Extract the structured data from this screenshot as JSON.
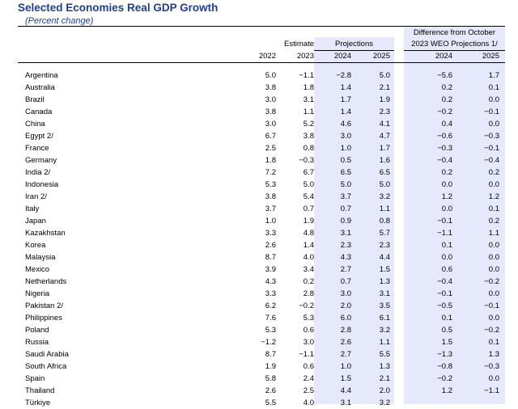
{
  "title": "Selected Economies Real GDP Growth",
  "subtitle": "(Percent change)",
  "headers": {
    "estimate": "Estimate",
    "projections": "Projections",
    "difference_line1": "Difference from October",
    "difference_line2": "2023 WEO Projections 1/",
    "years": [
      "2022",
      "2023",
      "2024",
      "2025",
      "2024",
      "2025"
    ]
  },
  "rows": [
    {
      "name": "Argentina",
      "values": [
        "5.0",
        "−1.1",
        "−2.8",
        "5.0",
        "−5.6",
        "1.7"
      ]
    },
    {
      "name": "Australia",
      "values": [
        "3.8",
        "1.8",
        "1.4",
        "2.1",
        "0.2",
        "0.1"
      ]
    },
    {
      "name": "Brazil",
      "values": [
        "3.0",
        "3.1",
        "1.7",
        "1.9",
        "0.2",
        "0.0"
      ]
    },
    {
      "name": "Canada",
      "values": [
        "3.8",
        "1.1",
        "1.4",
        "2.3",
        "−0.2",
        "−0.1"
      ]
    },
    {
      "name": "China",
      "values": [
        "3.0",
        "5.2",
        "4.6",
        "4.1",
        "0.4",
        "0.0"
      ]
    },
    {
      "name": "Egypt 2/",
      "values": [
        "6.7",
        "3.8",
        "3.0",
        "4.7",
        "−0.6",
        "−0.3"
      ]
    },
    {
      "name": "France",
      "values": [
        "2.5",
        "0.8",
        "1.0",
        "1.7",
        "−0.3",
        "−0.1"
      ]
    },
    {
      "name": "Germany",
      "values": [
        "1.8",
        "−0.3",
        "0.5",
        "1.6",
        "−0.4",
        "−0.4"
      ]
    },
    {
      "name": "India 2/",
      "values": [
        "7.2",
        "6.7",
        "6.5",
        "6.5",
        "0.2",
        "0.2"
      ]
    },
    {
      "name": "Indonesia",
      "values": [
        "5.3",
        "5.0",
        "5.0",
        "5.0",
        "0.0",
        "0.0"
      ]
    },
    {
      "name": "Iran 2/",
      "values": [
        "3.8",
        "5.4",
        "3.7",
        "3.2",
        "1.2",
        "1.2"
      ]
    },
    {
      "name": "Italy",
      "values": [
        "3.7",
        "0.7",
        "0.7",
        "1.1",
        "0.0",
        "0.1"
      ]
    },
    {
      "name": "Japan",
      "values": [
        "1.0",
        "1.9",
        "0.9",
        "0.8",
        "−0.1",
        "0.2"
      ]
    },
    {
      "name": "Kazakhstan",
      "values": [
        "3.3",
        "4.8",
        "3.1",
        "5.7",
        "−1.1",
        "1.1"
      ]
    },
    {
      "name": "Korea",
      "values": [
        "2.6",
        "1.4",
        "2.3",
        "2.3",
        "0.1",
        "0.0"
      ]
    },
    {
      "name": "Malaysia",
      "values": [
        "8.7",
        "4.0",
        "4.3",
        "4.4",
        "0.0",
        "0.0"
      ]
    },
    {
      "name": "Mexico",
      "values": [
        "3.9",
        "3.4",
        "2.7",
        "1.5",
        "0.6",
        "0.0"
      ]
    },
    {
      "name": "Netherlands",
      "values": [
        "4.3",
        "0.2",
        "0.7",
        "1.3",
        "−0.4",
        "−0.2"
      ]
    },
    {
      "name": "Nigeria",
      "values": [
        "3.3",
        "2.8",
        "3.0",
        "3.1",
        "−0.1",
        "0.0"
      ]
    },
    {
      "name": "Pakistan 2/",
      "values": [
        "6.2",
        "−0.2",
        "2.0",
        "3.5",
        "−0.5",
        "−0.1"
      ]
    },
    {
      "name": "Philippines",
      "values": [
        "7.6",
        "5.3",
        "6.0",
        "6.1",
        "0.1",
        "0.0"
      ]
    },
    {
      "name": "Poland",
      "values": [
        "5.3",
        "0.6",
        "2.8",
        "3.2",
        "0.5",
        "−0.2"
      ]
    },
    {
      "name": "Russia",
      "values": [
        "−1.2",
        "3.0",
        "2.6",
        "1.1",
        "1.5",
        "0.1"
      ]
    },
    {
      "name": "Saudi Arabia",
      "values": [
        "8.7",
        "−1.1",
        "2.7",
        "5.5",
        "−1.3",
        "1.3"
      ]
    },
    {
      "name": "South Africa",
      "values": [
        "1.9",
        "0.6",
        "1.0",
        "1.3",
        "−0.8",
        "−0.3"
      ]
    },
    {
      "name": "Spain",
      "values": [
        "5.8",
        "2.4",
        "1.5",
        "2.1",
        "−0.2",
        "0.0"
      ]
    },
    {
      "name": "Thailand",
      "values": [
        "2.6",
        "2.5",
        "4.4",
        "2.0",
        "1.2",
        "−1.1"
      ]
    },
    {
      "name": "Türkiye",
      "values": [
        "5.5",
        "4.0",
        "3.1",
        "3.2",
        "",
        ""
      ]
    }
  ]
}
